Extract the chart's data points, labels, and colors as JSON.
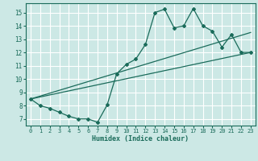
{
  "xlabel": "Humidex (Indice chaleur)",
  "bg_color": "#cce8e5",
  "grid_color": "#ffffff",
  "line_color": "#1a6b5a",
  "xlim": [
    -0.5,
    23.5
  ],
  "ylim": [
    6.5,
    15.7
  ],
  "xticks": [
    0,
    1,
    2,
    3,
    4,
    5,
    6,
    7,
    8,
    9,
    10,
    11,
    12,
    13,
    14,
    15,
    16,
    17,
    18,
    19,
    20,
    21,
    22,
    23
  ],
  "yticks": [
    7,
    8,
    9,
    10,
    11,
    12,
    13,
    14,
    15
  ],
  "line1_x": [
    0,
    1,
    2,
    3,
    4,
    5,
    6,
    7,
    8,
    9,
    10,
    11,
    12,
    13,
    14,
    15,
    16,
    17,
    18,
    19,
    20,
    21,
    22,
    23
  ],
  "line1_y": [
    8.5,
    8.0,
    7.8,
    7.5,
    7.2,
    7.0,
    7.0,
    6.75,
    8.05,
    10.4,
    11.1,
    11.5,
    12.6,
    15.0,
    15.25,
    13.85,
    14.0,
    15.3,
    14.0,
    13.6,
    12.4,
    13.35,
    12.0,
    12.0
  ],
  "line2_x": [
    0,
    23
  ],
  "line2_y": [
    8.5,
    12.0
  ],
  "line3_x": [
    0,
    23
  ],
  "line3_y": [
    8.5,
    13.5
  ]
}
